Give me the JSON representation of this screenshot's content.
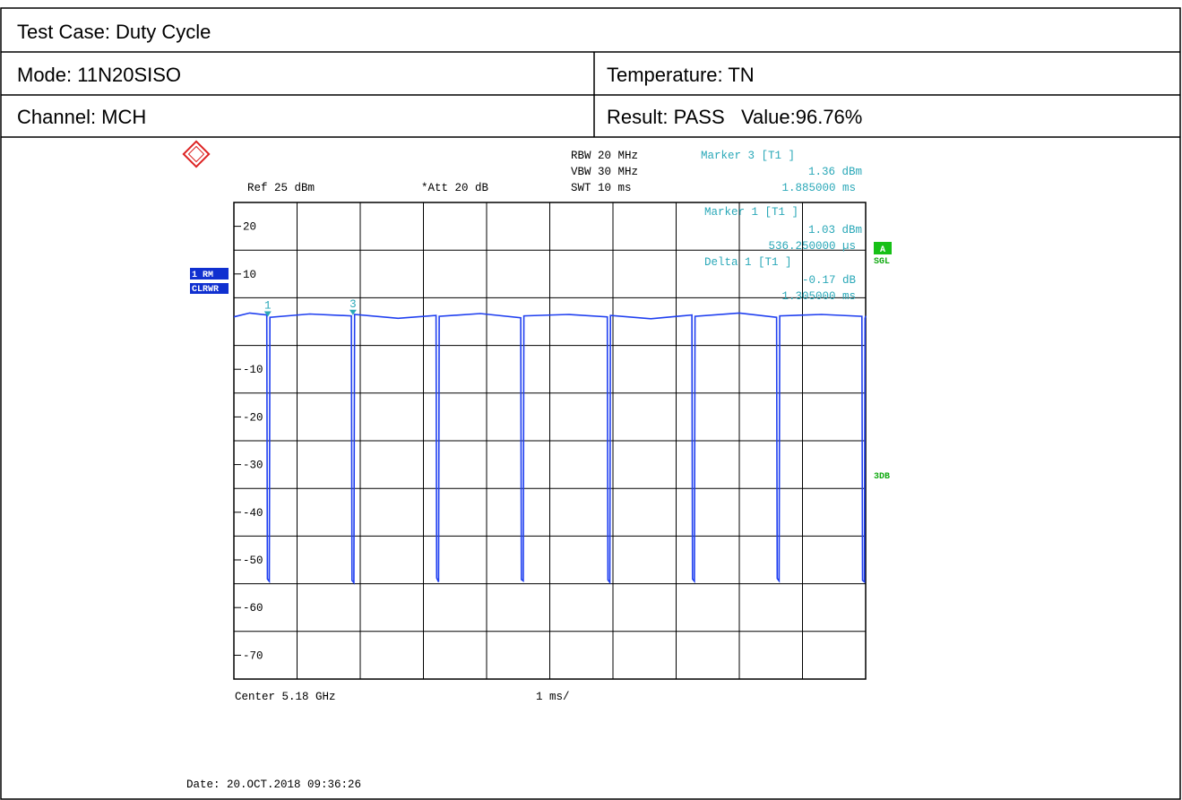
{
  "table": {
    "title": "Test Case: Duty Cycle",
    "rows": [
      [
        "Mode: 11N20SISO",
        "Temperature: TN"
      ],
      [
        "Channel: MCH",
        "Result: PASS   Value:96.76%"
      ]
    ]
  },
  "chart_data": {
    "type": "line",
    "annotations": [
      "RBW 20 MHz",
      "VBW 30 MHz",
      "SWT 10 ms",
      "Ref  25 dBm",
      "*Att  20 dB",
      "Marker 3 [T1 ]",
      "1.36 dBm",
      "1.885000 ms",
      "Marker 1 [T1 ]",
      "1.03 dBm",
      "536.250000 µs",
      "Delta 1 [T1 ]",
      "-0.17 dB",
      "1.305000 ms",
      "Center 5.18 GHz",
      "1 ms/",
      "Date: 20.OCT.2018  09:36:26",
      "A",
      "SGL",
      "3DB",
      "1 RM",
      "CLRWR"
    ],
    "xlim": [
      0,
      10
    ],
    "ylim": [
      -75,
      25
    ],
    "yticks": [
      20,
      10,
      -10,
      -20,
      -30,
      -40,
      -50,
      -60,
      -70
    ],
    "x": [
      0,
      0.25,
      0.52,
      0.53,
      0.56,
      0.57,
      1.2,
      1.86,
      1.87,
      1.9,
      1.91,
      2.6,
      3.2,
      3.21,
      3.24,
      3.25,
      3.9,
      4.54,
      4.55,
      4.58,
      4.59,
      5.3,
      5.91,
      5.92,
      5.95,
      5.96,
      6.6,
      7.25,
      7.26,
      7.29,
      7.3,
      8.0,
      8.59,
      8.6,
      8.63,
      8.64,
      9.3,
      9.94,
      9.95,
      9.98,
      9.99,
      10
    ],
    "series": [
      {
        "color": "#1f3ff0",
        "values": [
          1.0,
          1.8,
          1.4,
          -54,
          -54.5,
          0.9,
          1.6,
          1.2,
          -54.3,
          -54.8,
          1.5,
          0.7,
          1.3,
          -53.8,
          -54.6,
          1.1,
          1.7,
          0.8,
          -54.1,
          -54.4,
          1.2,
          1.5,
          1.0,
          -54.2,
          -54.7,
          1.3,
          0.6,
          1.4,
          -54,
          -54.5,
          1.1,
          1.8,
          0.9,
          -53.9,
          -54.4,
          1.2,
          1.5,
          1.1,
          -54.3,
          -54.6,
          0.7,
          1.2
        ]
      }
    ],
    "markers": [
      {
        "label": "1",
        "x": 0.53625,
        "y": 1.03
      },
      {
        "label": "3",
        "x": 1.885,
        "y": 1.36
      }
    ]
  }
}
